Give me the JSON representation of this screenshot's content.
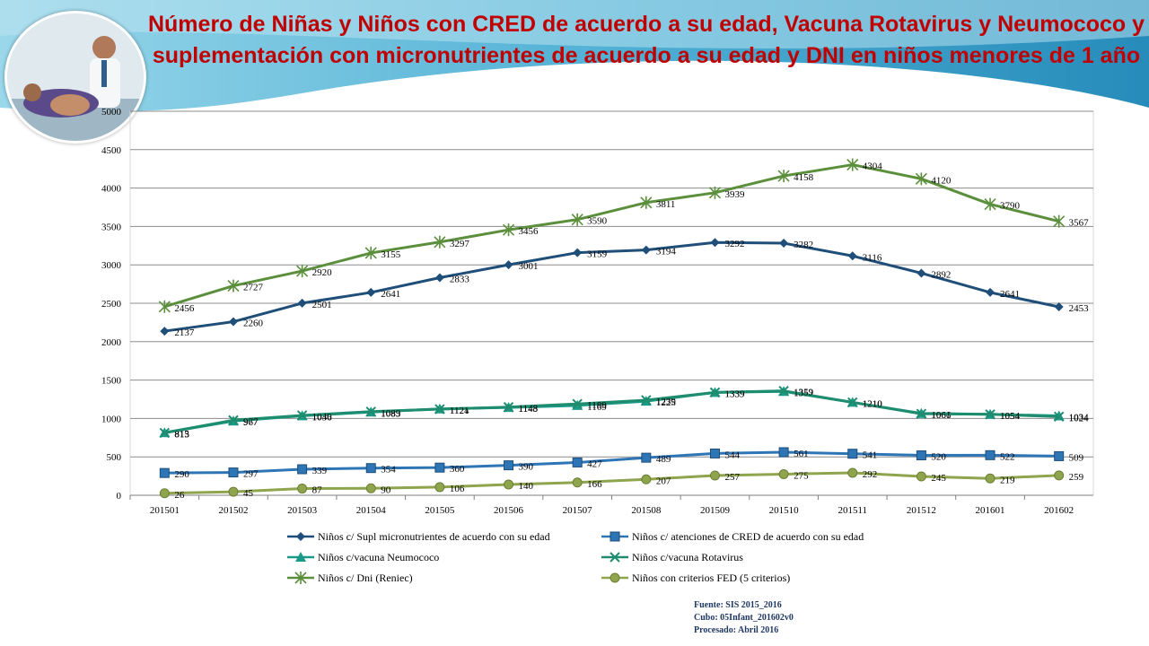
{
  "slide": {
    "title": "Número de Niñas y Niños con CRED de acuerdo a su edad, Vacuna Rotavirus y Neumococo y suplementación con micronutrientes de acuerdo a su edad  y DNI en niños menores  de 1 año",
    "photo_icon": "doctor-examining-patient-photo",
    "source_lines": [
      "Fuente: SIS 2015_2016",
      "Cubo: 05Infant_201602v0",
      "Procesado: Abril 2016"
    ]
  },
  "chart_data": {
    "type": "line",
    "categories": [
      "201501",
      "201502",
      "201503",
      "201504",
      "201505",
      "201506",
      "201507",
      "201508",
      "201509",
      "201510",
      "201511",
      "201512",
      "201601",
      "201602"
    ],
    "ylim": [
      0,
      5000
    ],
    "yticks": [
      0,
      500,
      1000,
      1500,
      2000,
      2500,
      3000,
      3500,
      4000,
      4500,
      5000
    ],
    "grid": true,
    "legend_position": "bottom",
    "series": [
      {
        "name": "Niños c/ Supl micronutrientes de acuerdo con su edad",
        "color": "#1f4e79",
        "marker": "diamond",
        "values": [
          2137,
          2260,
          2501,
          2641,
          2833,
          3001,
          3159,
          3194,
          3292,
          3282,
          3116,
          2892,
          2641,
          2453
        ]
      },
      {
        "name": "Niños c/ atenciones de CRED de acuerdo con su edad",
        "color": "#2e75b6",
        "marker": "square",
        "values": [
          290,
          297,
          339,
          354,
          360,
          390,
          427,
          489,
          544,
          561,
          541,
          520,
          522,
          509
        ]
      },
      {
        "name": "Niños c/vacuna Neumococo",
        "color": "#1b9a8a",
        "marker": "triangle",
        "values": [
          815,
          967,
          1036,
          1083,
          1124,
          1143,
          1169,
          1225,
          1339,
          1352,
          1210,
          1066,
          1054,
          1034
        ]
      },
      {
        "name": "Niños c/vacuna Rotavirus",
        "color": "#1e8c6e",
        "marker": "x",
        "values": [
          813,
          977,
          1040,
          1089,
          1121,
          1148,
          1189,
          1239,
          1339,
          1359,
          1210,
          1061,
          1054,
          1024
        ]
      },
      {
        "name": "Niños c/ Dni (Reniec)",
        "color": "#5b8f3c",
        "marker": "star",
        "values": [
          2456,
          2727,
          2920,
          3155,
          3297,
          3456,
          3590,
          3811,
          3939,
          4158,
          4304,
          4120,
          3790,
          3567
        ]
      },
      {
        "name": "Niños con criterios FED (5 criterios)",
        "color": "#8ea44d",
        "marker": "circle",
        "values": [
          26,
          45,
          87,
          90,
          106,
          140,
          166,
          207,
          257,
          275,
          292,
          245,
          219,
          259
        ]
      }
    ]
  }
}
